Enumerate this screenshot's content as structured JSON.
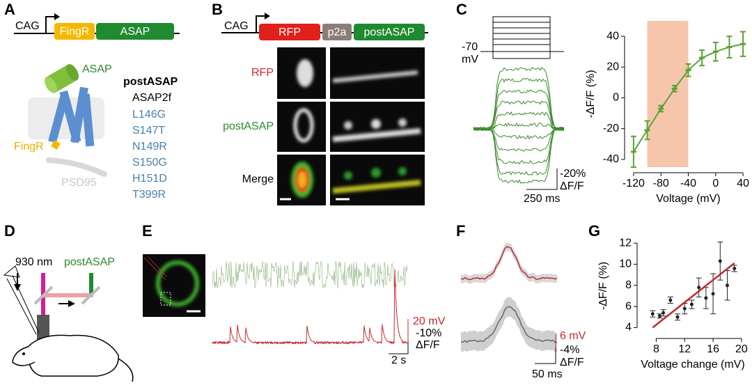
{
  "panels": {
    "A": {
      "label": "A",
      "promoter": "CAG",
      "construct": [
        "FingR",
        "ASAP"
      ],
      "protein": "ASAP",
      "anchor": "FingR",
      "scaffold": "PSD95",
      "variant": "postASAP",
      "parent": "ASAP2f",
      "mutations": [
        "L146G",
        "S147T",
        "N149R",
        "S150G",
        "H151D",
        "T399R"
      ]
    },
    "B": {
      "label": "B",
      "promoter": "CAG",
      "construct": [
        "RFP",
        "p2a",
        "postASAP"
      ],
      "rows": [
        "RFP",
        "postASAP",
        "Merge"
      ]
    },
    "C": {
      "label": "C",
      "holding": "-70",
      "holding_unit": "mV",
      "scale_f": "-20%",
      "scale_f_unit": "ΔF/F",
      "scale_t": "250 ms"
    },
    "D": {
      "label": "D",
      "wavelength": "930 nm",
      "indicator": "postASAP"
    },
    "E": {
      "label": "E",
      "scale_v": "20 mV",
      "scale_f": "-10%",
      "scale_f_unit": "ΔF/F",
      "scale_t": "2 s"
    },
    "F": {
      "label": "F",
      "scale_v": "6 mV",
      "scale_f": "-4%",
      "scale_f_unit": "ΔF/F",
      "scale_t": "50 ms"
    },
    "G": {
      "label": "G"
    }
  },
  "chart_data": [
    {
      "type": "line",
      "ylabel": "-ΔF/F (%)",
      "xlabel": "Voltage (mV)",
      "x": [
        -120,
        -100,
        -80,
        -60,
        -40,
        -20,
        0,
        20,
        40
      ],
      "series": [
        {
          "color": "#5aa334",
          "values": [
            -35,
            -21,
            -7,
            6,
            18,
            26,
            30,
            33,
            35
          ],
          "errors": [
            10,
            6,
            2,
            2,
            4,
            5,
            6,
            7,
            8
          ]
        }
      ],
      "xlim": [
        -125,
        45
      ],
      "ylim": [
        -45,
        50
      ],
      "xticks": [
        -120,
        -80,
        -40,
        0,
        40
      ],
      "yticks": [
        -40,
        -20,
        0,
        20,
        40
      ],
      "shade": [
        -100,
        -40
      ],
      "shade_color": "#f6c6ac"
    },
    {
      "type": "scatter",
      "ylabel": "-ΔF/F (%)",
      "xlabel": "Voltage change (mV)",
      "x": [
        7.5,
        8.5,
        9,
        10,
        11,
        12,
        13,
        14,
        15,
        16,
        17,
        18,
        19
      ],
      "series": [
        {
          "color": "#222222",
          "values": [
            5.3,
            5.1,
            5.4,
            6.6,
            5.0,
            5.8,
            6.2,
            7.8,
            6.8,
            7.2,
            10.3,
            8.0,
            9.6
          ],
          "errors": [
            0.3,
            0.2,
            0.3,
            0.3,
            0.3,
            0.5,
            0.4,
            0.9,
            1.0,
            1.9,
            1.8,
            1.4,
            0.3
          ]
        }
      ],
      "fit": {
        "color": "#c0282d",
        "x": [
          7.5,
          19
        ],
        "values": [
          4.0,
          10.1
        ]
      },
      "xlim": [
        6,
        20.3
      ],
      "ylim": [
        3.5,
        12.4
      ],
      "xticks": [
        8,
        12,
        16,
        20
      ],
      "yticks": [
        4,
        6,
        8,
        10,
        12
      ]
    }
  ]
}
